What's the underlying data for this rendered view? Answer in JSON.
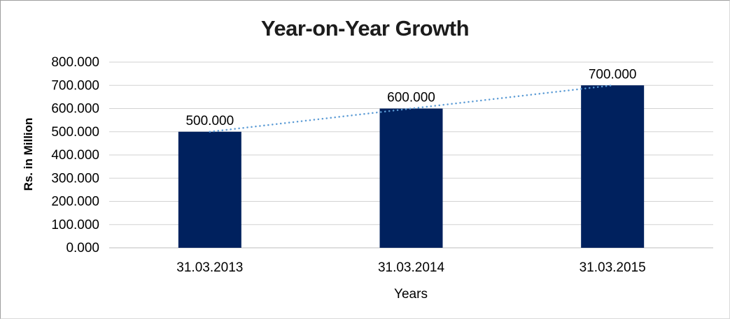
{
  "chart_data": {
    "type": "bar",
    "title": "Year-on-Year Growth",
    "xlabel": "Years",
    "ylabel": "Rs. in Million",
    "categories": [
      "31.03.2013",
      "31.03.2014",
      "31.03.2015"
    ],
    "values": [
      500,
      600,
      700
    ],
    "data_labels": [
      "500.000",
      "600.000",
      "700.000"
    ],
    "ylim": [
      0,
      800
    ],
    "y_tick_step": 100,
    "y_tick_labels": [
      "0.000",
      "100.000",
      "200.000",
      "300.000",
      "400.000",
      "500.000",
      "600.000",
      "700.000",
      "800.000"
    ],
    "grid": "horizontal-gridlines",
    "legend_position": "none",
    "trendline": {
      "type": "linear",
      "style": "dotted",
      "color": "#5B9BD5",
      "start_value": 500,
      "end_value": 700
    },
    "colors": {
      "bar": "#00215E",
      "gridline": "#D2D2D2",
      "axis_line": "#BDBDBD",
      "label_text": "#000000",
      "title_text": "#1C1C1C",
      "background": "#FFFFFF",
      "frame_border": "#9E9E9E"
    }
  }
}
